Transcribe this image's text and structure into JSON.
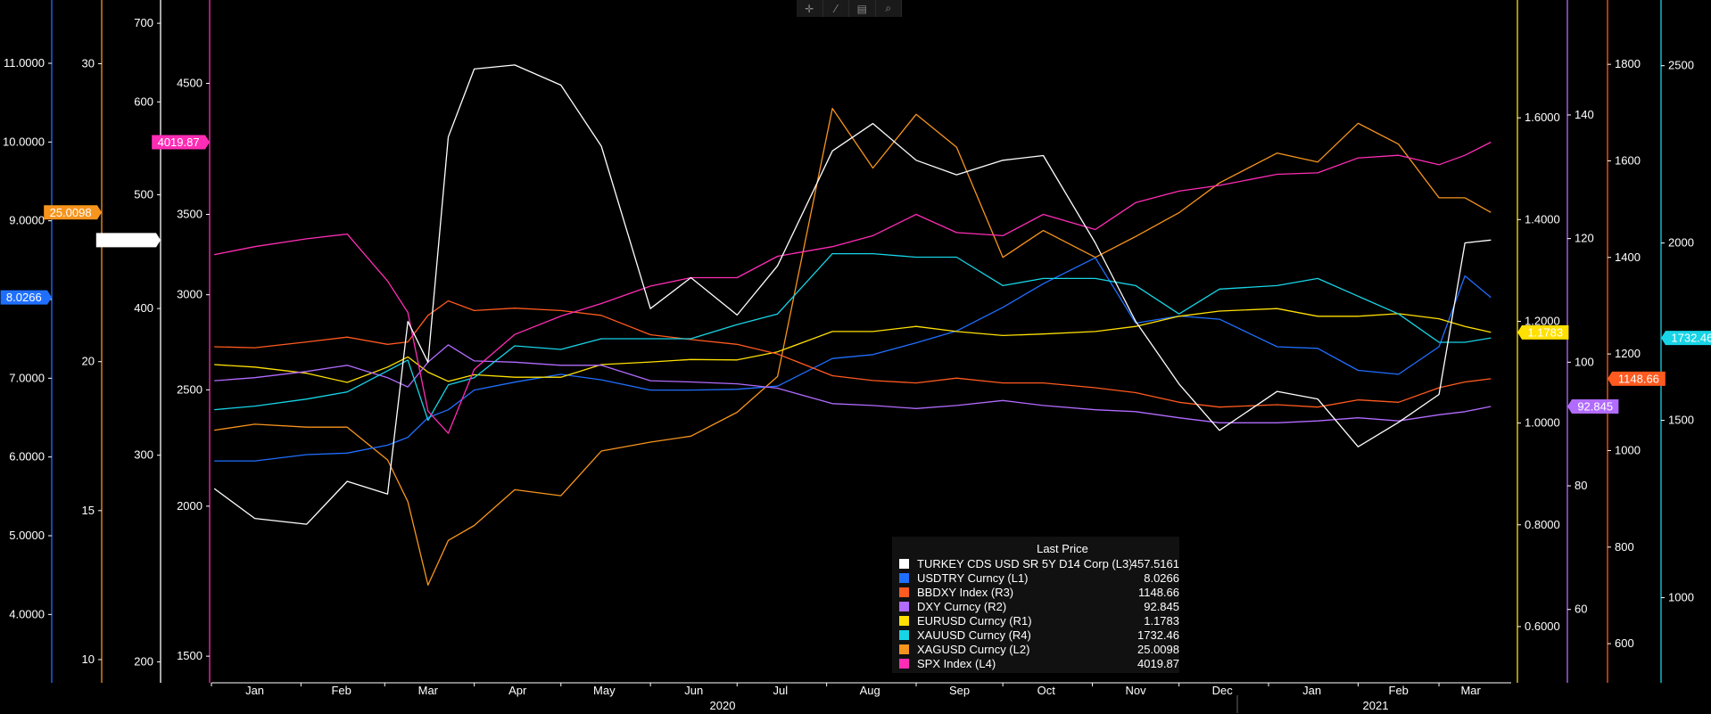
{
  "toolbar": {
    "icons": [
      "crosshair-icon",
      "draw-icon",
      "table-icon",
      "zoom-icon"
    ]
  },
  "chart_data": {
    "type": "line",
    "x": [
      "2020-01-02",
      "2020-01-16",
      "2020-02-03",
      "2020-02-17",
      "2020-03-02",
      "2020-03-09",
      "2020-03-16",
      "2020-03-23",
      "2020-04-01",
      "2020-04-15",
      "2020-05-01",
      "2020-05-15",
      "2020-06-01",
      "2020-06-15",
      "2020-07-01",
      "2020-07-15",
      "2020-08-03",
      "2020-08-17",
      "2020-09-01",
      "2020-09-15",
      "2020-10-01",
      "2020-10-15",
      "2020-11-02",
      "2020-11-16",
      "2020-12-01",
      "2020-12-15",
      "2021-01-04",
      "2021-01-18",
      "2021-02-01",
      "2021-02-15",
      "2021-03-01",
      "2021-03-10",
      "2021-03-19"
    ],
    "x_ticks": [
      "Jan",
      "Feb",
      "Mar",
      "Apr",
      "May",
      "Jun",
      "Jul",
      "Aug",
      "Sep",
      "Oct",
      "Nov",
      "Dec",
      "Jan",
      "Feb",
      "Mar"
    ],
    "year_labels": [
      "2020",
      "2021"
    ],
    "axes": [
      {
        "id": "L1",
        "side": "left",
        "color": "#1f6fff",
        "ticks": [
          "4.0000",
          "5.0000",
          "6.0000",
          "7.0000",
          "8.0000",
          "9.0000",
          "10.0000",
          "11.0000"
        ],
        "range": [
          3.2,
          11.6
        ]
      },
      {
        "id": "L2",
        "side": "left",
        "color": "#f7941d",
        "ticks": [
          "10",
          "15",
          "20",
          "25",
          "30"
        ],
        "range": [
          9.4,
          31.6
        ]
      },
      {
        "id": "L3",
        "side": "left",
        "color": "#ffffff",
        "ticks": [
          "200",
          "300",
          "400",
          "500",
          "600",
          "700"
        ],
        "range": [
          194,
          710
        ],
        "scale": "log"
      },
      {
        "id": "L4",
        "side": "left",
        "color": "#ff2db5",
        "ticks": [
          "1500",
          "2000",
          "2500",
          "3000",
          "3500",
          "4500"
        ],
        "range": [
          1440,
          5120
        ],
        "scale": "log"
      },
      {
        "id": "R1",
        "side": "right",
        "color": "#ffe000",
        "ticks": [
          "0.6000",
          "0.8000",
          "1.0000",
          "1.2000",
          "1.4000",
          "1.6000"
        ],
        "range": [
          0.5,
          1.8
        ]
      },
      {
        "id": "R2",
        "side": "right",
        "color": "#b26bff",
        "ticks": [
          "60",
          "80",
          "100",
          "120",
          "140"
        ],
        "range": [
          49,
          156
        ]
      },
      {
        "id": "R3",
        "side": "right",
        "color": "#ff5a1f",
        "ticks": [
          "600",
          "800",
          "1000",
          "1200",
          "1400",
          "1600",
          "1800"
        ],
        "range": [
          530,
          1900
        ]
      },
      {
        "id": "R4",
        "side": "right",
        "color": "#17d4e6",
        "ticks": [
          "1000",
          "1500",
          "2000",
          "2500"
        ],
        "range": [
          775,
          2640
        ]
      }
    ],
    "legend": {
      "title": "Last Price",
      "entries": [
        {
          "name": "TURKEY CDS USD SR 5Y D14 Corp  (L3)",
          "value": "457.5161",
          "color": "#ffffff"
        },
        {
          "name": "USDTRY Curncy  (L1)",
          "value": "8.0266",
          "color": "#1f6fff"
        },
        {
          "name": "BBDXY Index  (R3)",
          "value": "1148.66",
          "color": "#ff5a1f"
        },
        {
          "name": "DXY Curncy  (R2)",
          "value": "92.845",
          "color": "#b26bff"
        },
        {
          "name": "EURUSD Curncy  (R1)",
          "value": "1.1783",
          "color": "#ffe000"
        },
        {
          "name": "XAUUSD Curncy  (R4)",
          "value": "1732.46",
          "color": "#17d4e6"
        },
        {
          "name": "XAGUSD Curncy  (L2)",
          "value": "25.0098",
          "color": "#f7941d"
        },
        {
          "name": "SPX Index  (L4)",
          "value": "4019.87",
          "color": "#ff2db5"
        }
      ]
    },
    "series": [
      {
        "name": "TURKEY CDS USD SR 5Y D14 Corp",
        "axis": "L3",
        "color": "#ffffff",
        "last_label": "457.5161",
        "values": [
          281,
          265,
          262,
          285,
          278,
          390,
          360,
          560,
          640,
          645,
          620,
          550,
          400,
          425,
          395,
          435,
          545,
          575,
          535,
          520,
          535,
          540,
          455,
          390,
          345,
          315,
          340,
          335,
          305,
          320,
          338,
          455,
          457.5
        ]
      },
      {
        "name": "USDTRY Curncy",
        "axis": "L1",
        "color": "#1f6fff",
        "last_label": "8.0266",
        "values": [
          5.95,
          5.95,
          6.03,
          6.05,
          6.15,
          6.25,
          6.5,
          6.6,
          6.85,
          6.95,
          7.05,
          6.98,
          6.85,
          6.85,
          6.86,
          6.9,
          7.25,
          7.3,
          7.45,
          7.6,
          7.9,
          8.2,
          8.53,
          7.7,
          7.79,
          7.75,
          7.4,
          7.38,
          7.1,
          7.05,
          7.4,
          8.3,
          8.0266
        ]
      },
      {
        "name": "BBDXY Index",
        "axis": "R3",
        "color": "#ff5a1f",
        "last_label": "1148.66",
        "values": [
          1215,
          1213,
          1225,
          1235,
          1220,
          1225,
          1280,
          1310,
          1290,
          1295,
          1290,
          1280,
          1240,
          1230,
          1220,
          1200,
          1155,
          1145,
          1140,
          1150,
          1140,
          1140,
          1130,
          1120,
          1100,
          1090,
          1095,
          1090,
          1105,
          1100,
          1130,
          1142,
          1148.66
        ]
      },
      {
        "name": "DXY Curncy",
        "axis": "R2",
        "color": "#b26bff",
        "last_label": "92.845",
        "values": [
          97,
          97.5,
          98.5,
          99.5,
          97.5,
          96,
          100,
          102.8,
          100.2,
          100,
          99.5,
          99.5,
          97,
          96.8,
          96.5,
          95.8,
          93.3,
          93,
          92.5,
          93,
          93.8,
          93,
          92.3,
          92,
          91,
          90.2,
          90.2,
          90.5,
          91,
          90.5,
          91.5,
          92,
          92.845
        ]
      },
      {
        "name": "EURUSD Curncy",
        "axis": "R1",
        "color": "#ffe000",
        "last_label": "1.1783",
        "values": [
          1.115,
          1.11,
          1.098,
          1.08,
          1.11,
          1.13,
          1.1,
          1.082,
          1.095,
          1.09,
          1.09,
          1.115,
          1.12,
          1.125,
          1.124,
          1.14,
          1.18,
          1.18,
          1.19,
          1.18,
          1.172,
          1.175,
          1.18,
          1.19,
          1.21,
          1.22,
          1.225,
          1.21,
          1.21,
          1.215,
          1.205,
          1.19,
          1.1783
        ]
      },
      {
        "name": "XAUUSD Curncy",
        "axis": "R4",
        "color": "#17d4e6",
        "last_label": "1732.46",
        "values": [
          1530,
          1540,
          1560,
          1580,
          1640,
          1670,
          1500,
          1600,
          1620,
          1710,
          1700,
          1730,
          1730,
          1730,
          1770,
          1800,
          1970,
          1970,
          1960,
          1960,
          1880,
          1900,
          1900,
          1880,
          1800,
          1870,
          1880,
          1900,
          1850,
          1800,
          1720,
          1720,
          1732.46
        ]
      },
      {
        "name": "XAGUSD Curncy",
        "axis": "L2",
        "color": "#f7941d",
        "last_label": "25.0098",
        "values": [
          17.7,
          17.9,
          17.8,
          17.8,
          16.7,
          15.3,
          12.5,
          14,
          14.5,
          15.7,
          15.5,
          17,
          17.3,
          17.5,
          18.3,
          19.5,
          28.5,
          26.5,
          28.3,
          27.2,
          23.5,
          24.4,
          23.5,
          24.2,
          25,
          26,
          27,
          26.7,
          28,
          27.3,
          25.5,
          25.5,
          25.0098
        ]
      },
      {
        "name": "SPX Index",
        "axis": "L4",
        "color": "#ff2db5",
        "last_label": "4019.87",
        "values": [
          3240,
          3290,
          3340,
          3370,
          3080,
          2900,
          2400,
          2300,
          2600,
          2780,
          2880,
          2950,
          3050,
          3100,
          3100,
          3230,
          3290,
          3360,
          3500,
          3380,
          3360,
          3500,
          3400,
          3580,
          3660,
          3700,
          3780,
          3790,
          3900,
          3920,
          3850,
          3920,
          4019.87
        ]
      }
    ]
  }
}
